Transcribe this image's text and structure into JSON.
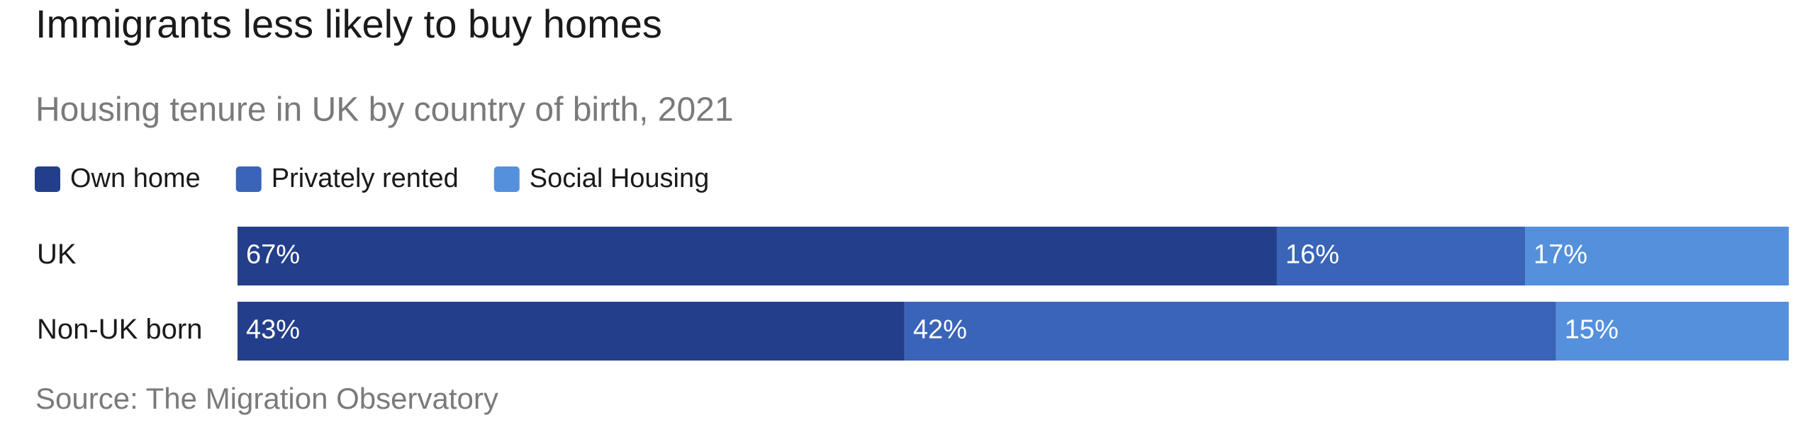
{
  "chart_data": {
    "type": "bar",
    "orientation": "horizontal",
    "stacked": true,
    "title": "Immigrants less likely to buy homes",
    "subtitle": "Housing tenure in UK by country of birth, 2021",
    "source": "Source: The Migration Observatory",
    "categories": [
      "UK",
      "Non-UK born"
    ],
    "series": [
      {
        "name": "Own home",
        "color": "#233f8c",
        "values": [
          67,
          43
        ],
        "value_labels": [
          "67%",
          "43%"
        ]
      },
      {
        "name": "Privately rented",
        "color": "#3a64b8",
        "values": [
          16,
          42
        ],
        "value_labels": [
          "16%",
          "42%"
        ]
      },
      {
        "name": "Social Housing",
        "color": "#5590dd",
        "values": [
          17,
          15
        ],
        "value_labels": [
          "17%",
          "15%"
        ]
      }
    ]
  }
}
